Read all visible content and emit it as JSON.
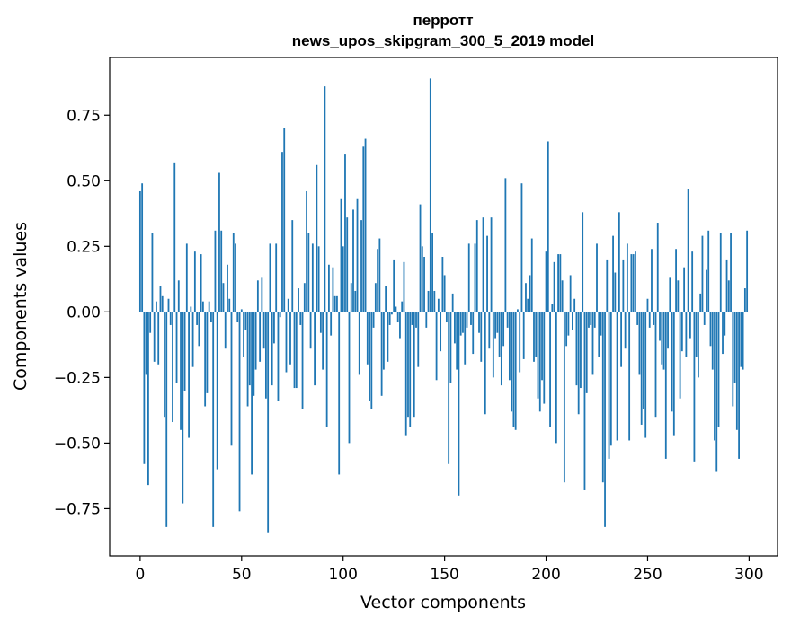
{
  "chart_data": {
    "type": "bar",
    "title_lines": [
      "перротт",
      "news_upos_skipgram_300_5_2019 model"
    ],
    "xlabel": "Vector components",
    "ylabel": "Components values",
    "xlim": [
      -15,
      314
    ],
    "ylim": [
      -0.93,
      0.97
    ],
    "xticks": [
      0,
      50,
      100,
      150,
      200,
      250,
      300
    ],
    "xtick_labels": [
      "0",
      "50",
      "100",
      "150",
      "200",
      "250",
      "300"
    ],
    "yticks": [
      -0.75,
      -0.5,
      -0.25,
      0.0,
      0.25,
      0.5,
      0.75
    ],
    "ytick_labels": [
      "−0.75",
      "−0.50",
      "−0.25",
      "0.00",
      "0.25",
      "0.50",
      "0.75"
    ],
    "series_color": "#1f77b4",
    "x": "indices 0..299 (one bar per vector component)",
    "values": [
      0.46,
      0.49,
      -0.58,
      -0.24,
      -0.66,
      -0.08,
      0.3,
      -0.19,
      0.04,
      -0.2,
      0.1,
      0.06,
      -0.4,
      -0.82,
      0.05,
      -0.05,
      -0.42,
      0.57,
      -0.27,
      0.12,
      -0.45,
      -0.73,
      -0.3,
      0.26,
      -0.48,
      0.02,
      -0.21,
      0.23,
      -0.05,
      -0.13,
      0.22,
      0.04,
      -0.36,
      -0.31,
      0.04,
      -0.04,
      -0.82,
      0.31,
      -0.6,
      0.53,
      0.31,
      0.11,
      -0.14,
      0.18,
      0.05,
      -0.51,
      0.3,
      0.26,
      -0.04,
      -0.76,
      0.01,
      -0.17,
      -0.07,
      -0.36,
      -0.28,
      -0.62,
      -0.32,
      -0.22,
      0.12,
      -0.19,
      0.13,
      -0.14,
      -0.33,
      -0.84,
      0.26,
      -0.28,
      -0.12,
      0.26,
      -0.34,
      -0.02,
      0.61,
      0.7,
      -0.23,
      0.05,
      -0.2,
      0.35,
      -0.29,
      -0.29,
      0.09,
      -0.05,
      -0.37,
      0.11,
      0.46,
      0.3,
      -0.14,
      0.26,
      -0.28,
      0.56,
      0.25,
      -0.08,
      -0.22,
      0.86,
      -0.44,
      0.18,
      -0.09,
      0.17,
      0.06,
      0.06,
      -0.62,
      0.43,
      0.25,
      0.6,
      0.36,
      -0.5,
      0.11,
      0.39,
      0.08,
      0.43,
      -0.24,
      0.35,
      0.63,
      0.66,
      -0.2,
      -0.34,
      -0.37,
      -0.06,
      0.11,
      0.24,
      0.28,
      -0.32,
      -0.22,
      0.1,
      -0.19,
      -0.05,
      -0.01,
      0.2,
      0.02,
      -0.04,
      -0.1,
      0.04,
      0.19,
      -0.47,
      -0.4,
      -0.44,
      -0.05,
      -0.4,
      -0.06,
      -0.21,
      0.41,
      0.25,
      0.21,
      -0.06,
      0.08,
      0.89,
      0.3,
      0.08,
      -0.26,
      0.05,
      -0.15,
      0.21,
      0.14,
      -0.04,
      -0.58,
      -0.27,
      0.07,
      -0.12,
      -0.22,
      -0.7,
      -0.09,
      -0.08,
      -0.2,
      -0.06,
      0.26,
      -0.05,
      -0.16,
      0.26,
      0.35,
      -0.08,
      -0.19,
      0.36,
      -0.39,
      0.29,
      -0.14,
      0.36,
      -0.25,
      -0.1,
      -0.08,
      -0.17,
      -0.28,
      -0.13,
      0.51,
      -0.06,
      -0.26,
      -0.38,
      -0.44,
      -0.45,
      0.01,
      -0.23,
      0.49,
      -0.18,
      0.11,
      0.05,
      0.14,
      0.28,
      -0.19,
      -0.17,
      -0.33,
      -0.38,
      -0.26,
      -0.35,
      0.23,
      0.65,
      -0.44,
      0.03,
      0.19,
      -0.5,
      0.22,
      0.22,
      0.12,
      -0.65,
      -0.13,
      -0.09,
      0.14,
      -0.07,
      0.05,
      -0.28,
      -0.39,
      -0.29,
      0.38,
      -0.68,
      -0.31,
      -0.06,
      -0.05,
      -0.24,
      -0.06,
      0.26,
      -0.17,
      -0.09,
      -0.65,
      -0.82,
      0.2,
      -0.56,
      -0.51,
      0.29,
      0.15,
      -0.49,
      0.38,
      -0.21,
      0.2,
      -0.14,
      0.26,
      -0.49,
      0.22,
      0.22,
      0.23,
      -0.05,
      -0.24,
      -0.43,
      -0.37,
      -0.48,
      0.05,
      -0.06,
      0.24,
      -0.05,
      -0.4,
      0.34,
      -0.11,
      -0.2,
      -0.22,
      -0.56,
      -0.14,
      0.13,
      -0.38,
      -0.47,
      0.24,
      0.12,
      -0.33,
      -0.15,
      0.17,
      -0.17,
      0.47,
      -0.1,
      0.23,
      -0.57,
      -0.17,
      -0.25,
      0.07,
      0.29,
      -0.05,
      0.16,
      0.31,
      -0.13,
      -0.22,
      -0.49,
      -0.61,
      -0.44,
      0.3,
      -0.16,
      -0.09,
      0.2,
      0.12,
      0.3,
      -0.36,
      -0.27,
      -0.45,
      -0.56,
      -0.21,
      -0.22,
      0.09,
      0.31
    ]
  }
}
